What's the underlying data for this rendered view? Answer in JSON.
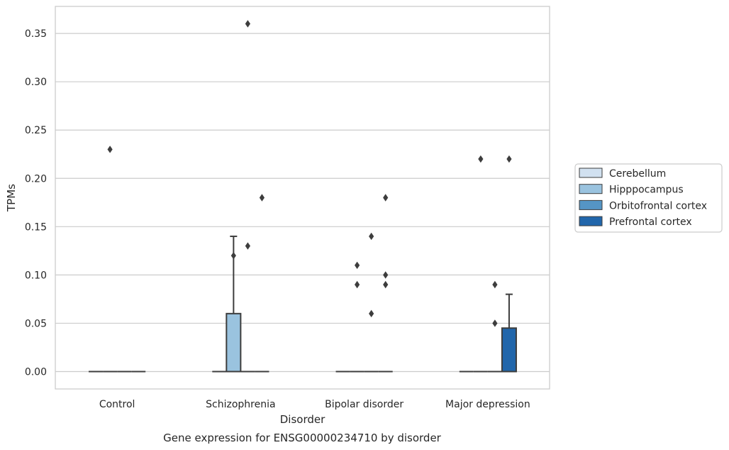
{
  "chart_data": {
    "type": "box",
    "title": "",
    "caption": "Gene expression for ENSG00000234710 by disorder",
    "xlabel": "Disorder",
    "ylabel": "TPMs",
    "ylim": [
      -0.018,
      0.378
    ],
    "yticks": [
      0.0,
      0.05,
      0.1,
      0.15,
      0.2,
      0.25,
      0.3,
      0.35
    ],
    "ytick_labels": [
      "0.00",
      "0.05",
      "0.10",
      "0.15",
      "0.20",
      "0.25",
      "0.30",
      "0.35"
    ],
    "grid": true,
    "legend_position": "right",
    "categories": [
      "Control",
      "Schizophrenia",
      "Bipolar disorder",
      "Major depression"
    ],
    "series": [
      {
        "name": "Cerebellum",
        "color": "#d1e1f0",
        "boxes": [
          {
            "category": "Control",
            "q1": 0,
            "median": 0,
            "q3": 0,
            "whisker_low": 0,
            "whisker_high": 0,
            "outliers": []
          },
          {
            "category": "Schizophrenia",
            "q1": 0,
            "median": 0,
            "q3": 0,
            "whisker_low": 0,
            "whisker_high": 0,
            "outliers": []
          },
          {
            "category": "Bipolar disorder",
            "q1": 0,
            "median": 0,
            "q3": 0,
            "whisker_low": 0,
            "whisker_high": 0,
            "outliers": []
          },
          {
            "category": "Major depression",
            "q1": 0,
            "median": 0,
            "q3": 0,
            "whisker_low": 0,
            "whisker_high": 0,
            "outliers": []
          }
        ]
      },
      {
        "name": "Hipppocampus",
        "color": "#9ac3df",
        "boxes": [
          {
            "category": "Control",
            "q1": 0,
            "median": 0,
            "q3": 0,
            "whisker_low": 0,
            "whisker_high": 0,
            "outliers": [
              0.23
            ]
          },
          {
            "category": "Schizophrenia",
            "q1": 0,
            "median": 0,
            "q3": 0.06,
            "whisker_low": 0,
            "whisker_high": 0.14,
            "outliers": [
              0.12
            ]
          },
          {
            "category": "Bipolar disorder",
            "q1": 0,
            "median": 0,
            "q3": 0,
            "whisker_low": 0,
            "whisker_high": 0,
            "outliers": [
              0.11,
              0.09
            ]
          },
          {
            "category": "Major depression",
            "q1": 0,
            "median": 0,
            "q3": 0,
            "whisker_low": 0,
            "whisker_high": 0,
            "outliers": [
              0.22
            ]
          }
        ]
      },
      {
        "name": "Orbitofrontal cortex",
        "color": "#5595c5",
        "boxes": [
          {
            "category": "Control",
            "q1": 0,
            "median": 0,
            "q3": 0,
            "whisker_low": 0,
            "whisker_high": 0,
            "outliers": []
          },
          {
            "category": "Schizophrenia",
            "q1": 0,
            "median": 0,
            "q3": 0,
            "whisker_low": 0,
            "whisker_high": 0,
            "outliers": [
              0.36,
              0.13
            ]
          },
          {
            "category": "Bipolar disorder",
            "q1": 0,
            "median": 0,
            "q3": 0,
            "whisker_low": 0,
            "whisker_high": 0,
            "outliers": [
              0.14,
              0.06
            ]
          },
          {
            "category": "Major depression",
            "q1": 0,
            "median": 0,
            "q3": 0,
            "whisker_low": 0,
            "whisker_high": 0,
            "outliers": [
              0.09,
              0.05
            ]
          }
        ]
      },
      {
        "name": "Prefrontal cortex",
        "color": "#2166ab",
        "boxes": [
          {
            "category": "Control",
            "q1": 0,
            "median": 0,
            "q3": 0,
            "whisker_low": 0,
            "whisker_high": 0,
            "outliers": []
          },
          {
            "category": "Schizophrenia",
            "q1": 0,
            "median": 0,
            "q3": 0,
            "whisker_low": 0,
            "whisker_high": 0,
            "outliers": [
              0.18
            ]
          },
          {
            "category": "Bipolar disorder",
            "q1": 0,
            "median": 0,
            "q3": 0,
            "whisker_low": 0,
            "whisker_high": 0,
            "outliers": [
              0.18,
              0.1,
              0.09
            ]
          },
          {
            "category": "Major depression",
            "q1": 0,
            "median": 0,
            "q3": 0.045,
            "whisker_low": 0,
            "whisker_high": 0.08,
            "outliers": [
              0.22
            ]
          }
        ]
      }
    ]
  }
}
